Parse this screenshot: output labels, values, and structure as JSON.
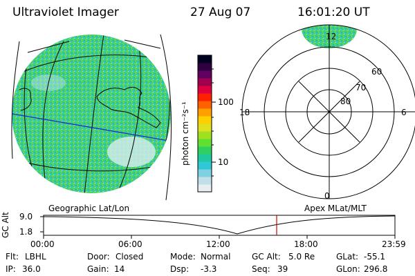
{
  "header": {
    "instrument": "Ultraviolet Imager",
    "date": "27 Aug 07",
    "time": "16:01:20 UT"
  },
  "colorbar": {
    "unit_label": "photon cm⁻²s⁻¹",
    "ticks": [
      {
        "label": "100",
        "value": 100
      },
      {
        "label": "10",
        "value": 10
      }
    ],
    "colors": [
      "#e8eef0",
      "#bfe0e8",
      "#7fd0e0",
      "#30c8d8",
      "#20c8a0",
      "#30d060",
      "#60e030",
      "#a0e020",
      "#e0e020",
      "#ffd000",
      "#ffa000",
      "#ff6000",
      "#ff2000",
      "#e00040",
      "#a00050",
      "#600060",
      "#300040",
      "#000020"
    ]
  },
  "left_map": {
    "label": "Geographic Lat/Lon"
  },
  "polar_plot": {
    "label": "Apex MLat/MLT",
    "mlt_labels": [
      "12",
      "18",
      "6",
      "0"
    ],
    "lat_labels": [
      "60",
      "70",
      "80"
    ]
  },
  "timeline": {
    "ylabel": "GC Alt",
    "y_ticks": [
      "9.0",
      "1.8"
    ],
    "x_ticks": [
      "00:00",
      "06:00",
      "12:00",
      "18:00",
      "23:59"
    ],
    "cursor_time": "16:01"
  },
  "footer": {
    "flt_label": "Flt:",
    "flt_value": "LBHL",
    "ip_label": "IP:",
    "ip_value": "36.0",
    "door_label": "Door:",
    "door_value": "Closed",
    "gain_label": "Gain:",
    "gain_value": "14",
    "mode_label": "Mode:",
    "mode_value": "Normal",
    "dsp_label": "Dsp:",
    "dsp_value": "-3.3",
    "gcalt_label": "GC Alt:",
    "gcalt_value": "5.0 Re",
    "seq_label": "Seq:",
    "seq_value": "39",
    "glat_label": "GLat:",
    "glat_value": "-55.1",
    "glon_label": "GLon:",
    "glon_value": "296.8"
  },
  "colors": {
    "aurora_green": "#40d060",
    "aurora_cyan": "#30c8d8",
    "grid_blue": "#1a2cd0",
    "cursor_red": "#d00000"
  }
}
